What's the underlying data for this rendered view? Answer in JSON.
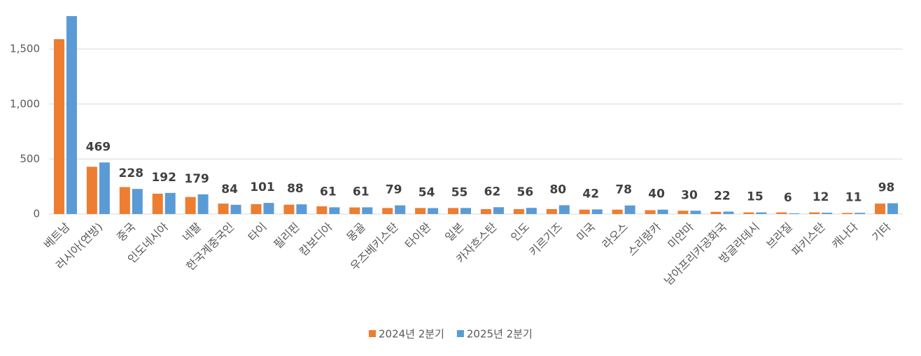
{
  "chart_data": {
    "type": "bar",
    "categories": [
      "베트남",
      "러시아(연방)",
      "중국",
      "인도네시아",
      "네팔",
      "한국계중국인",
      "타이",
      "필리핀",
      "캄보디아",
      "몽골",
      "우즈베키스탄",
      "타이완",
      "일본",
      "카자흐스탄",
      "인도",
      "키르기즈",
      "미국",
      "라오스",
      "스리랑카",
      "미얀마",
      "남아프리카공화국",
      "방글라데시",
      "브라질",
      "파키스탄",
      "캐나다",
      "기타"
    ],
    "series": [
      {
        "name": "2024년 2분기",
        "color": "#ED7D31",
        "values": [
          1590,
          430,
          245,
          185,
          155,
          95,
          90,
          85,
          70,
          60,
          55,
          55,
          55,
          45,
          45,
          45,
          40,
          40,
          35,
          30,
          20,
          15,
          15,
          15,
          10,
          95
        ]
      },
      {
        "name": "2025년 2분기",
        "color": "#5B9BD5",
        "values": [
          1800,
          469,
          228,
          192,
          179,
          84,
          101,
          88,
          61,
          61,
          79,
          54,
          55,
          62,
          56,
          80,
          42,
          78,
          40,
          30,
          22,
          15,
          6,
          12,
          11,
          98
        ],
        "value_labels": [
          null,
          "469",
          "228",
          "192",
          "179",
          "84",
          "101",
          "88",
          "61",
          "61",
          "79",
          "54",
          "55",
          "62",
          "56",
          "80",
          "42",
          "78",
          "40",
          "30",
          "22",
          "15",
          "6",
          "12",
          "11",
          "98"
        ]
      }
    ],
    "ylim": [
      0,
      1800
    ],
    "yticks": [
      0,
      500,
      {
        "value": 1000,
        "label": "1,000"
      },
      {
        "value": 1500,
        "label": "1,500"
      }
    ],
    "grid": true,
    "legend": "bottom"
  }
}
